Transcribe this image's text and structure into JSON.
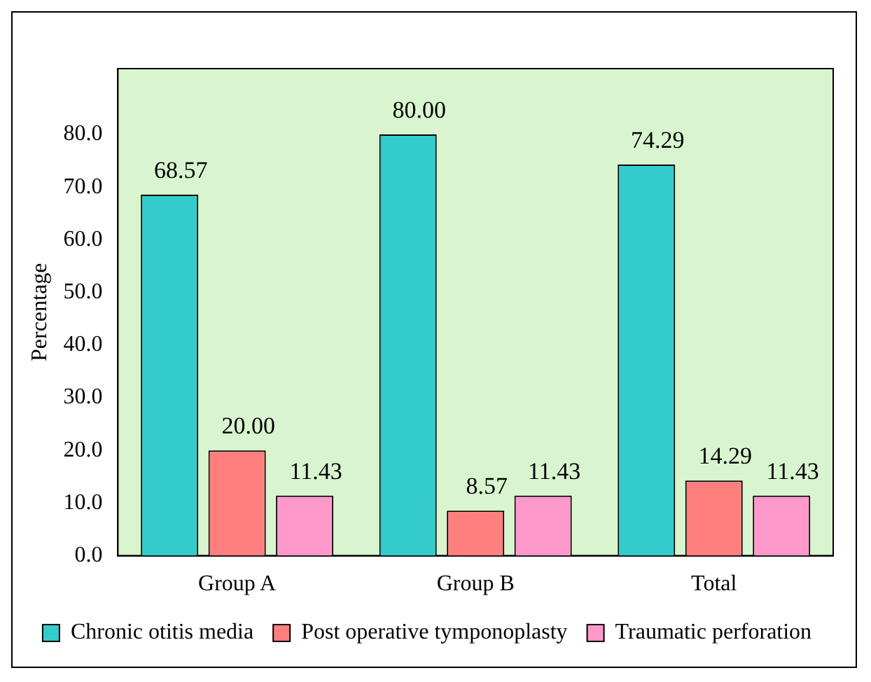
{
  "chart_data": {
    "type": "bar",
    "ylabel": "Percentage",
    "categories": [
      "Group A",
      "Group B",
      "Total"
    ],
    "series": [
      {
        "name": "Chronic otitis media",
        "color": "#33cccc",
        "values": [
          68.57,
          80.0,
          74.29
        ],
        "value_labels": [
          "68.57",
          "80.00",
          "74.29"
        ]
      },
      {
        "name": "Post operative tymponoplasty",
        "color": "#ff7f7f",
        "values": [
          20.0,
          8.57,
          14.29
        ],
        "value_labels": [
          "20.00",
          "8.57",
          "14.29"
        ]
      },
      {
        "name": "Traumatic perforation",
        "color": "#ff99cc",
        "values": [
          11.43,
          11.43,
          11.43
        ],
        "value_labels": [
          "11.43",
          "11.43",
          "11.43"
        ]
      }
    ],
    "ylim": [
      0,
      92.5
    ],
    "yticks": [
      {
        "value": 0,
        "label": "0.0"
      },
      {
        "value": 10,
        "label": "10.0"
      },
      {
        "value": 20,
        "label": "20.0"
      },
      {
        "value": 30,
        "label": "30.0"
      },
      {
        "value": 40,
        "label": "40.0"
      },
      {
        "value": 50,
        "label": "50.0"
      },
      {
        "value": 60,
        "label": "60.0"
      },
      {
        "value": 70,
        "label": "70.0"
      },
      {
        "value": 80,
        "label": "80.0"
      }
    ],
    "grid": false,
    "legend": "bottom"
  }
}
